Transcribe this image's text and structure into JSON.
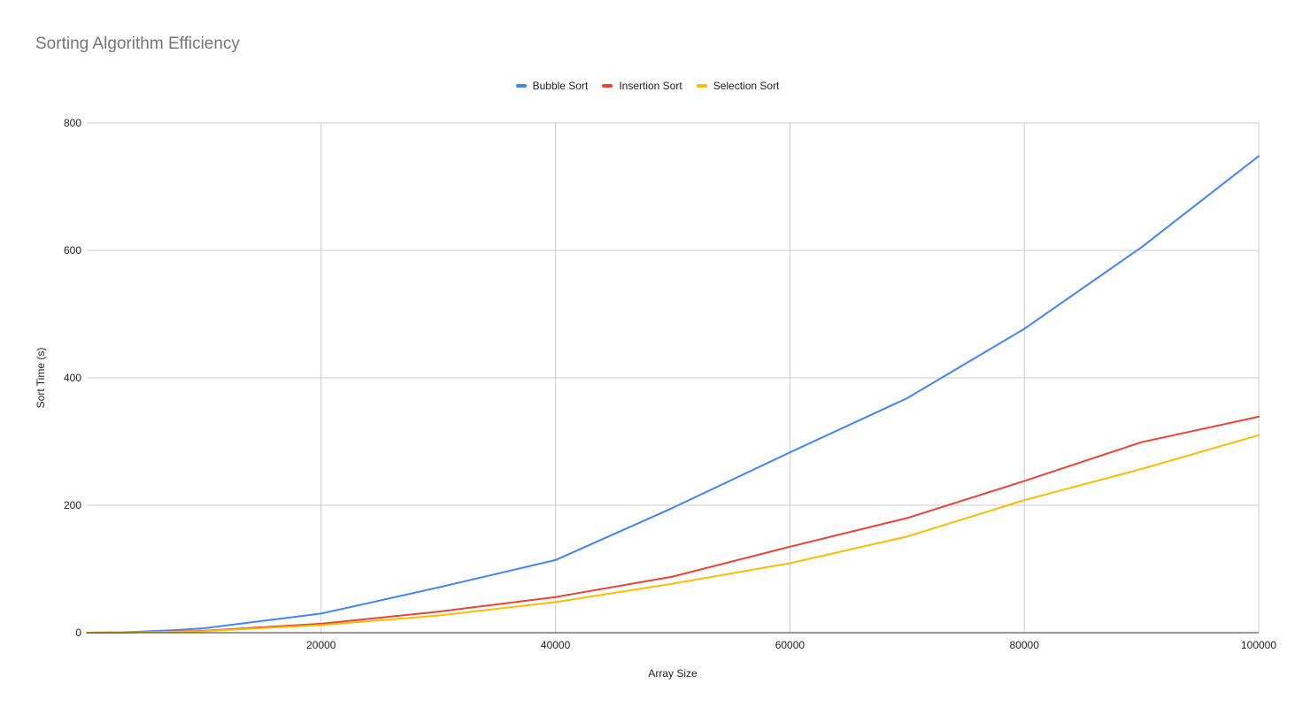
{
  "chart_data": {
    "type": "line",
    "title": "Sorting Algorithm Efficiency",
    "xlabel": "Array Size",
    "ylabel": "Sort Time (s)",
    "xlim": [
      0,
      100000
    ],
    "ylim": [
      0,
      800
    ],
    "x_ticks": [
      20000,
      40000,
      60000,
      80000,
      100000
    ],
    "y_ticks": [
      0,
      200,
      400,
      600,
      800
    ],
    "grid": true,
    "legend_position": "top-center",
    "x": [
      0,
      3000,
      7500,
      10000,
      20000,
      30000,
      40000,
      50000,
      60000,
      70000,
      80000,
      90000,
      100000
    ],
    "series": [
      {
        "name": "Bubble Sort",
        "color": "#4285f4",
        "values": [
          0,
          0.5,
          4,
          7,
          30,
          71,
          114,
          196,
          283,
          368,
          477,
          605,
          748
        ]
      },
      {
        "name": "Insertion Sort",
        "color": "#ea4335",
        "values": [
          0,
          0.2,
          2,
          3,
          14,
          33,
          56,
          88,
          135,
          180,
          238,
          299,
          339
        ]
      },
      {
        "name": "Selection Sort",
        "color": "#fbbc04",
        "values": [
          0,
          0.2,
          1.5,
          2.5,
          12,
          27,
          48,
          77,
          109,
          151,
          208,
          257,
          310
        ]
      }
    ]
  }
}
